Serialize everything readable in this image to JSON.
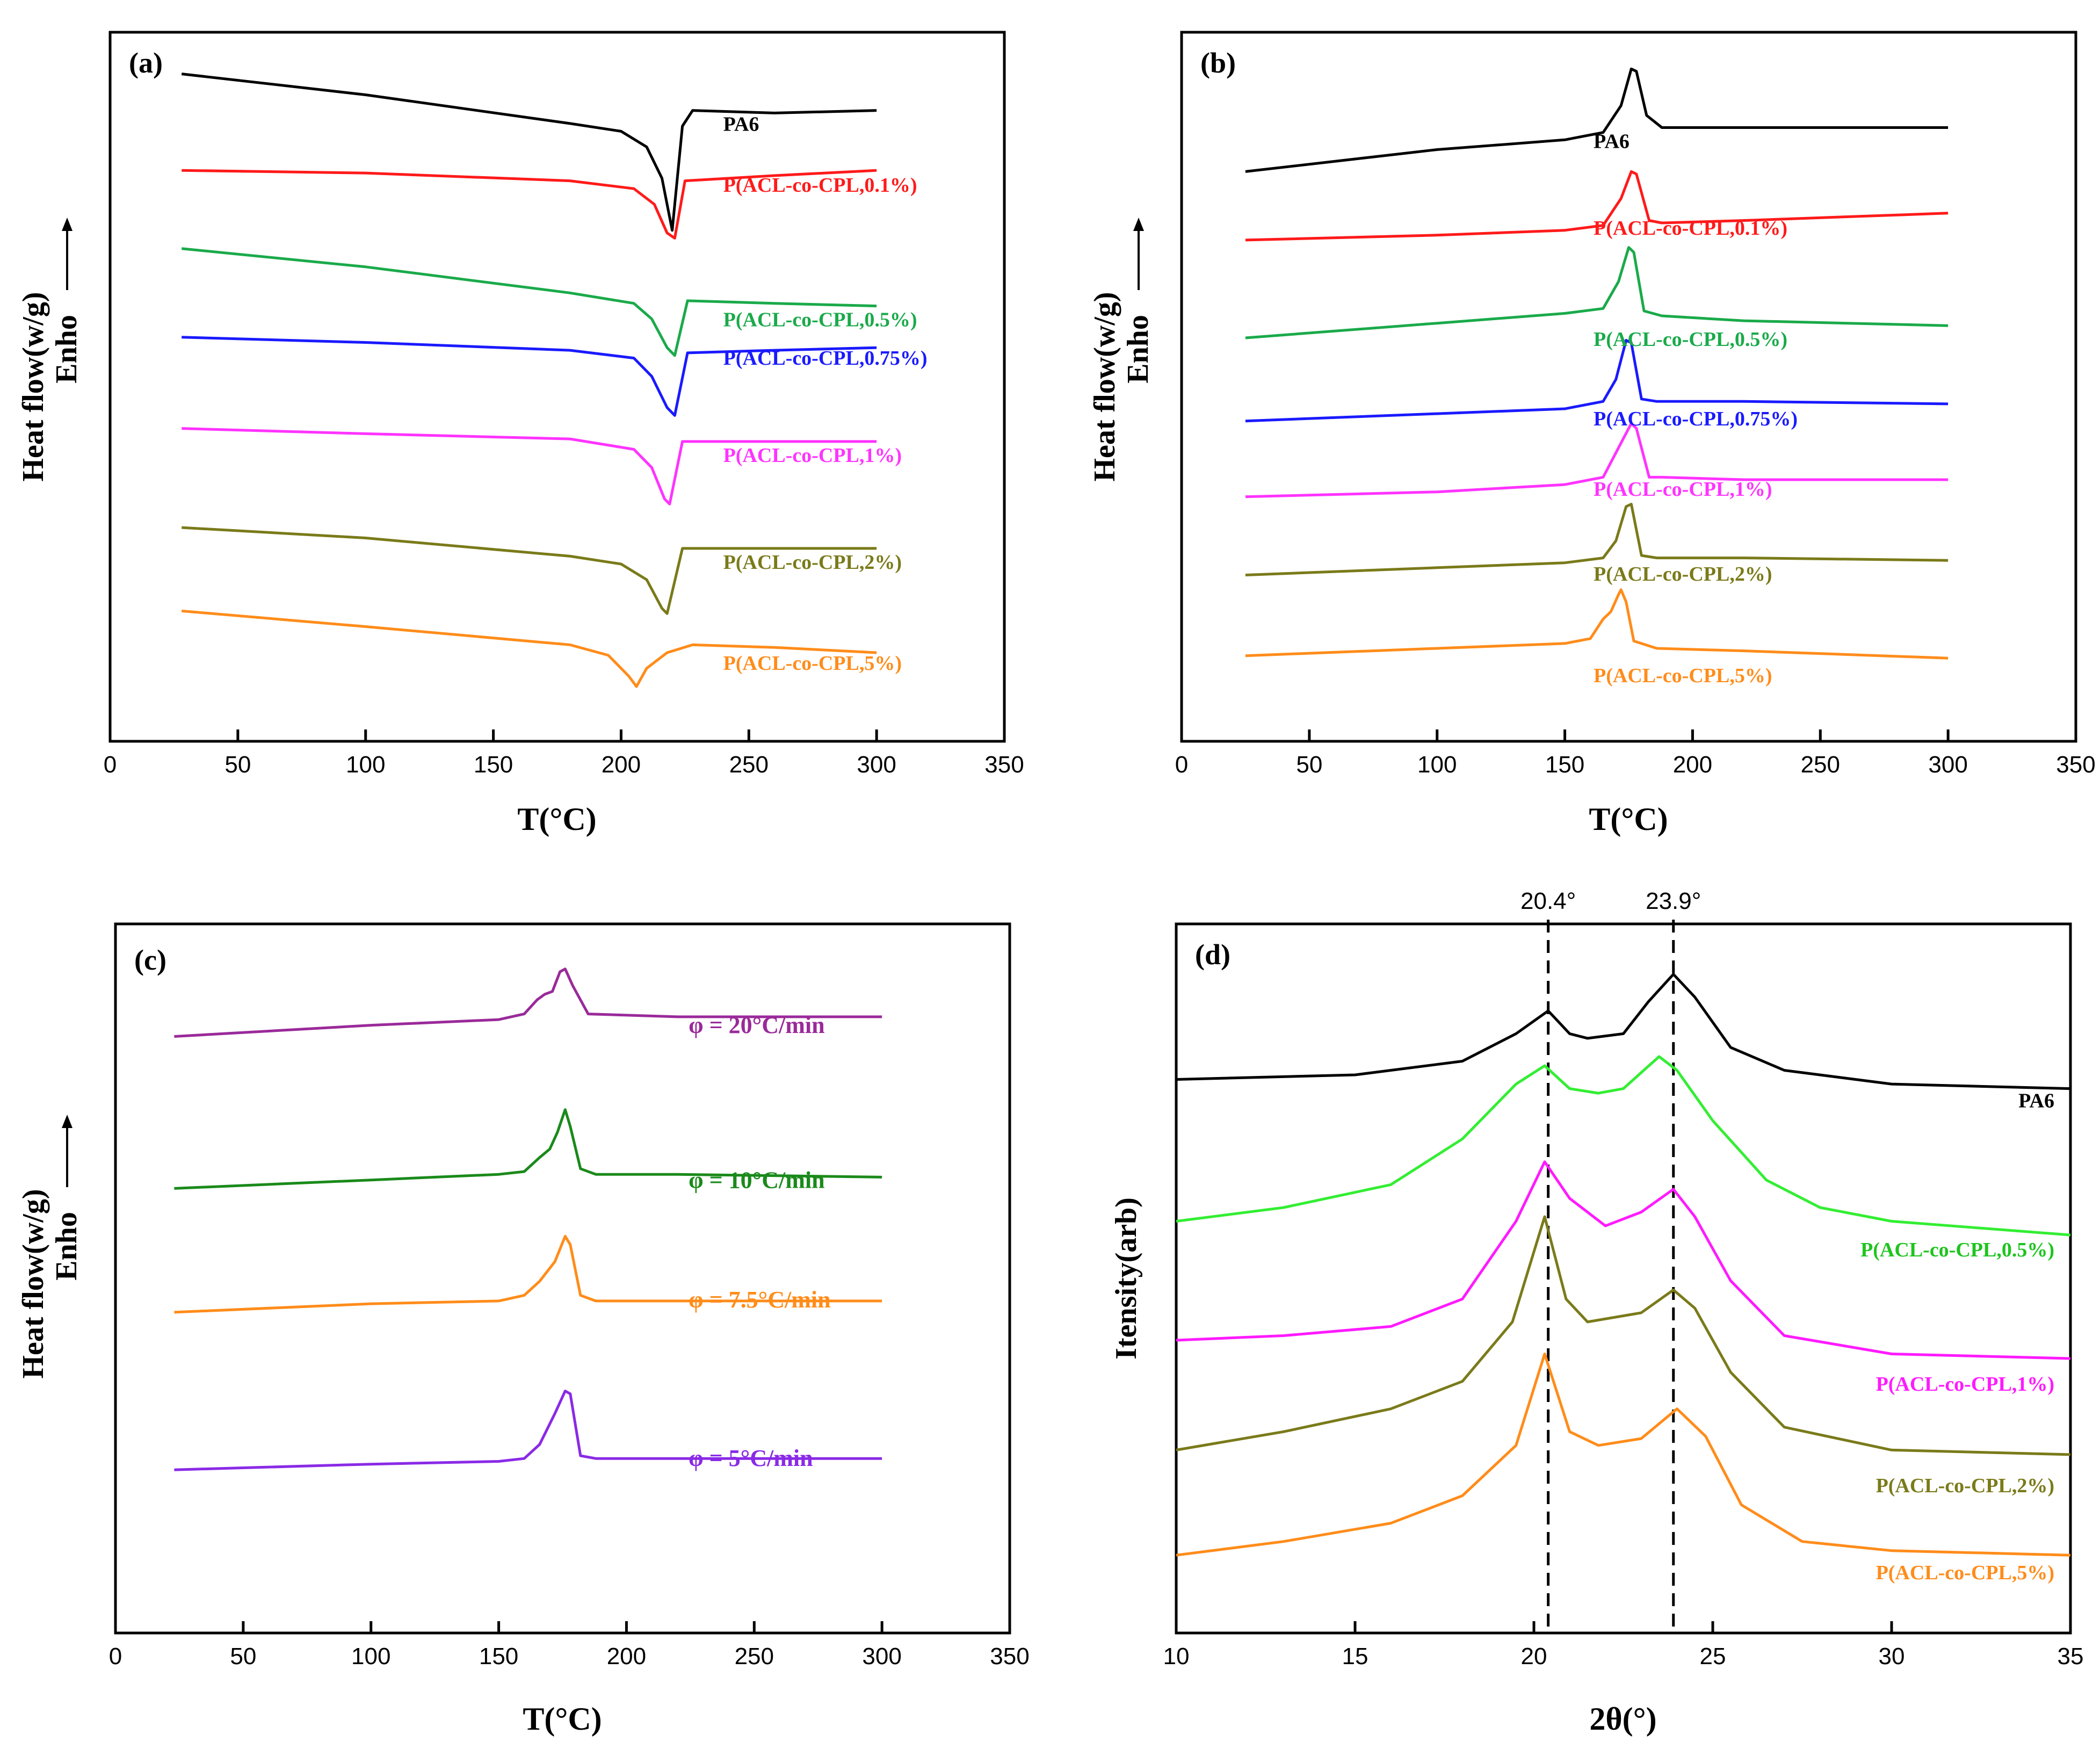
{
  "chart_data": [
    {
      "panel": "(a)",
      "type": "line",
      "title": "",
      "xlabel": "T(°C)",
      "ylabel": "Heat flow(w/g)",
      "ylabel2": "Enho",
      "xlim": [
        0,
        350
      ],
      "xticks": [
        0,
        50,
        100,
        150,
        200,
        250,
        300,
        350
      ],
      "series": [
        {
          "name": "PA6",
          "color": "#000000",
          "x": [
            28,
            100,
            180,
            200,
            210,
            216,
            220,
            224,
            228,
            260,
            300
          ],
          "y": [
            10.0,
            9.6,
            9.05,
            8.9,
            8.6,
            8.0,
            7.0,
            9.0,
            9.3,
            9.25,
            9.3
          ]
        },
        {
          "name": "P(ACL-co-CPL,0.1%)",
          "color": "#ff1a1a",
          "x": [
            28,
            100,
            180,
            205,
            213,
            218,
            221,
            225,
            260,
            300
          ],
          "y": [
            8.15,
            8.1,
            7.95,
            7.8,
            7.5,
            6.95,
            6.85,
            7.95,
            8.05,
            8.15
          ]
        },
        {
          "name": "P(ACL-co-CPL,0.5%)",
          "color": "#1aaa4a",
          "x": [
            28,
            100,
            180,
            205,
            212,
            218,
            221,
            226,
            260,
            300
          ],
          "y": [
            6.65,
            6.3,
            5.8,
            5.6,
            5.3,
            4.75,
            4.6,
            5.65,
            5.6,
            5.55
          ]
        },
        {
          "name": "P(ACL-co-CPL,0.75%)",
          "color": "#1a1aff",
          "x": [
            28,
            100,
            180,
            205,
            212,
            218,
            221,
            226,
            260,
            300
          ],
          "y": [
            4.95,
            4.85,
            4.7,
            4.55,
            4.2,
            3.6,
            3.45,
            4.65,
            4.7,
            4.75
          ]
        },
        {
          "name": "P(ACL-co-CPL,1%)",
          "color": "#ff33ff",
          "x": [
            28,
            100,
            180,
            205,
            212,
            217,
            219,
            224,
            260,
            300
          ],
          "y": [
            3.2,
            3.1,
            3.0,
            2.8,
            2.45,
            1.85,
            1.75,
            2.95,
            2.95,
            2.95
          ]
        },
        {
          "name": "P(ACL-co-CPL,2%)",
          "color": "#7a7a1a",
          "x": [
            28,
            100,
            180,
            200,
            210,
            216,
            218,
            224,
            260,
            300
          ],
          "y": [
            1.3,
            1.1,
            0.75,
            0.6,
            0.3,
            -0.25,
            -0.35,
            0.9,
            0.9,
            0.9
          ]
        },
        {
          "name": "P(ACL-co-CPL,5%)",
          "color": "#ff8c1a",
          "x": [
            28,
            100,
            180,
            195,
            203,
            206,
            210,
            218,
            228,
            260,
            300
          ],
          "y": [
            -0.3,
            -0.6,
            -0.95,
            -1.15,
            -1.55,
            -1.75,
            -1.4,
            -1.1,
            -0.95,
            -1.0,
            -1.1
          ]
        }
      ]
    },
    {
      "panel": "(b)",
      "type": "line",
      "title": "",
      "xlabel": "T(°C)",
      "ylabel": "Heat flow(w/g)",
      "ylabel2": "Enho",
      "xlim": [
        0,
        350
      ],
      "xticks": [
        0,
        50,
        100,
        150,
        200,
        250,
        300,
        350
      ],
      "series": [
        {
          "name": "PA6",
          "color": "#000000",
          "x": [
            25,
            100,
            150,
            165,
            172,
            176,
            178,
            182,
            188,
            220,
            300
          ],
          "y": [
            8.85,
            9.3,
            9.5,
            9.65,
            10.2,
            10.95,
            10.9,
            10.0,
            9.75,
            9.75,
            9.75
          ]
        },
        {
          "name": "P(ACL-co-CPL,0.1%)",
          "color": "#ff1a1a",
          "x": [
            25,
            100,
            150,
            165,
            172,
            176,
            178,
            183,
            188,
            220,
            300
          ],
          "y": [
            7.45,
            7.55,
            7.65,
            7.75,
            8.3,
            8.85,
            8.8,
            7.85,
            7.8,
            7.85,
            8.0
          ]
        },
        {
          "name": "P(ACL-co-CPL,0.5%)",
          "color": "#1aaa4a",
          "x": [
            25,
            100,
            150,
            165,
            171,
            175,
            177,
            181,
            188,
            220,
            300
          ],
          "y": [
            5.45,
            5.75,
            5.95,
            6.05,
            6.6,
            7.3,
            7.2,
            6.0,
            5.9,
            5.8,
            5.7
          ]
        },
        {
          "name": "P(ACL-co-CPL,0.75%)",
          "color": "#1a1aff",
          "x": [
            25,
            100,
            150,
            165,
            170,
            174,
            176,
            180,
            186,
            220,
            300
          ],
          "y": [
            3.75,
            3.9,
            4.0,
            4.15,
            4.6,
            5.4,
            5.35,
            4.2,
            4.15,
            4.15,
            4.1
          ]
        },
        {
          "name": "P(ACL-co-CPL,1%)",
          "color": "#ff33ff",
          "x": [
            25,
            100,
            150,
            165,
            172,
            176,
            178,
            183,
            188,
            220,
            300
          ],
          "y": [
            2.2,
            2.3,
            2.45,
            2.6,
            3.3,
            3.7,
            3.6,
            2.6,
            2.6,
            2.55,
            2.55
          ]
        },
        {
          "name": "P(ACL-co-CPL,2%)",
          "color": "#7a7a1a",
          "x": [
            25,
            100,
            150,
            165,
            170,
            174,
            176,
            180,
            186,
            220,
            300
          ],
          "y": [
            0.6,
            0.75,
            0.85,
            0.95,
            1.3,
            2.0,
            2.05,
            1.0,
            0.95,
            0.95,
            0.9
          ]
        },
        {
          "name": "P(ACL-co-CPL,5%)",
          "color": "#ff8c1a",
          "x": [
            25,
            100,
            150,
            160,
            165,
            168,
            171,
            172,
            174,
            177,
            186,
            220,
            300
          ],
          "y": [
            -1.05,
            -0.9,
            -0.8,
            -0.7,
            -0.3,
            -0.15,
            0.2,
            0.3,
            0.05,
            -0.75,
            -0.9,
            -0.95,
            -1.1
          ]
        }
      ]
    },
    {
      "panel": "(c)",
      "type": "line",
      "title": "",
      "xlabel": "T(°C)",
      "ylabel": "Heat flow(w/g)",
      "ylabel2": "Enho",
      "xlim": [
        0,
        350
      ],
      "xticks": [
        0,
        50,
        100,
        150,
        200,
        250,
        300,
        350
      ],
      "series": [
        {
          "name": "φ = 20°C/min",
          "color": "#9a2a9a",
          "x": [
            23,
            100,
            150,
            160,
            165,
            168,
            171,
            174,
            176,
            179,
            185,
            220,
            300
          ],
          "y": [
            9.0,
            9.2,
            9.3,
            9.4,
            9.65,
            9.75,
            9.8,
            10.15,
            10.2,
            9.9,
            9.4,
            9.35,
            9.35
          ]
        },
        {
          "name": "φ = 10°C/min",
          "color": "#1a8a1a",
          "x": [
            23,
            100,
            150,
            160,
            166,
            170,
            173,
            176,
            178,
            182,
            188,
            220,
            300
          ],
          "y": [
            6.3,
            6.45,
            6.55,
            6.6,
            6.85,
            7.0,
            7.3,
            7.7,
            7.4,
            6.65,
            6.55,
            6.55,
            6.5
          ]
        },
        {
          "name": "φ = 7.5°C/min",
          "color": "#ff8c1a",
          "x": [
            23,
            100,
            150,
            160,
            166,
            172,
            176,
            178,
            182,
            188,
            220,
            300
          ],
          "y": [
            4.1,
            4.25,
            4.3,
            4.4,
            4.65,
            5.0,
            5.45,
            5.3,
            4.4,
            4.3,
            4.3,
            4.3
          ]
        },
        {
          "name": "φ = 5°C/min",
          "color": "#8a2ae6",
          "x": [
            23,
            100,
            150,
            160,
            166,
            172,
            176,
            178,
            182,
            188,
            220,
            300
          ],
          "y": [
            1.3,
            1.4,
            1.45,
            1.5,
            1.75,
            2.3,
            2.7,
            2.65,
            1.55,
            1.5,
            1.5,
            1.5
          ]
        }
      ]
    },
    {
      "panel": "(d)",
      "type": "line",
      "title": "",
      "xlabel": "2θ(°)",
      "ylabel": "Itensity(arb)",
      "xlim": [
        10,
        35
      ],
      "xticks": [
        10,
        15,
        20,
        25,
        30,
        35
      ],
      "reference_lines": [
        {
          "x": 20.4,
          "label": "20.4°"
        },
        {
          "x": 23.9,
          "label": "23.9°"
        }
      ],
      "series": [
        {
          "name": "PA6",
          "color": "#000000",
          "x": [
            10,
            15,
            18,
            19.5,
            20.4,
            21.0,
            21.5,
            22.5,
            23.2,
            23.9,
            24.5,
            25.5,
            27,
            30,
            35
          ],
          "y": [
            12.6,
            12.7,
            13.0,
            13.6,
            14.1,
            13.6,
            13.5,
            13.6,
            14.3,
            14.9,
            14.4,
            13.3,
            12.8,
            12.5,
            12.4
          ]
        },
        {
          "name": "P(ACL-co-CPL,0.5%)",
          "color": "#33ee33",
          "x": [
            10,
            13,
            16,
            18,
            19.5,
            20.3,
            21.0,
            21.8,
            22.5,
            23.5,
            24.0,
            25.0,
            26.5,
            28,
            30,
            35
          ],
          "y": [
            9.5,
            9.8,
            10.3,
            11.3,
            12.5,
            12.9,
            12.4,
            12.3,
            12.4,
            13.1,
            12.8,
            11.7,
            10.4,
            9.8,
            9.5,
            9.2
          ]
        },
        {
          "name": "P(ACL-co-CPL,1%)",
          "color": "#ff1aff",
          "x": [
            10,
            13,
            16,
            18,
            19.5,
            20.3,
            21.0,
            22.0,
            23.0,
            23.9,
            24.5,
            25.5,
            27,
            30,
            35
          ],
          "y": [
            6.9,
            7.0,
            7.2,
            7.8,
            9.5,
            10.8,
            10.0,
            9.4,
            9.7,
            10.2,
            9.6,
            8.2,
            7.0,
            6.6,
            6.5
          ]
        },
        {
          "name": "P(ACL-co-CPL,2%)",
          "color": "#7a7a1a",
          "x": [
            10,
            13,
            16,
            18,
            19.4,
            20.3,
            20.9,
            21.5,
            23.0,
            23.9,
            24.5,
            25.5,
            27,
            30,
            35
          ],
          "y": [
            4.5,
            4.9,
            5.4,
            6.0,
            7.3,
            9.6,
            7.8,
            7.3,
            7.5,
            8.0,
            7.6,
            6.2,
            5.0,
            4.5,
            4.4
          ]
        },
        {
          "name": "P(ACL-co-CPL,5%)",
          "color": "#ff8c1a",
          "x": [
            10,
            13,
            16,
            18,
            19.5,
            20.3,
            21.0,
            21.8,
            23.0,
            24.0,
            24.8,
            25.8,
            27.5,
            30,
            35
          ],
          "y": [
            2.2,
            2.5,
            2.9,
            3.5,
            4.6,
            6.6,
            4.9,
            4.6,
            4.75,
            5.4,
            4.8,
            3.3,
            2.5,
            2.3,
            2.2
          ]
        }
      ]
    }
  ]
}
